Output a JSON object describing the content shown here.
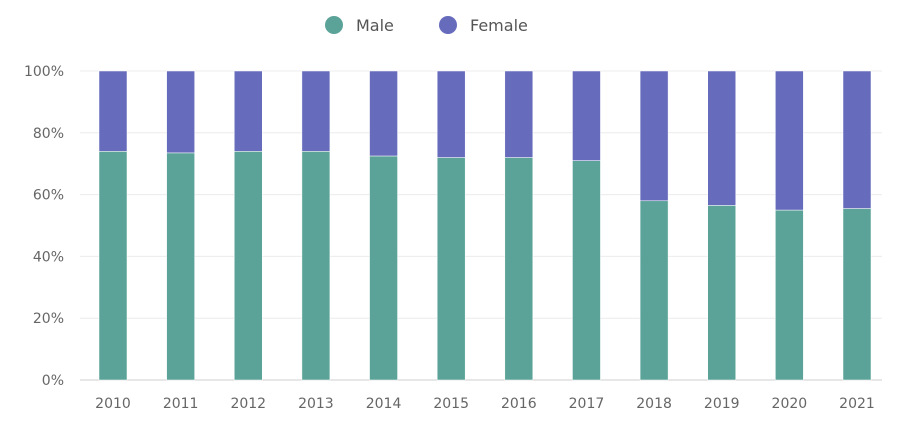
{
  "chart_data": {
    "type": "bar",
    "stacked": true,
    "percent": true,
    "categories": [
      "2010",
      "2011",
      "2012",
      "2013",
      "2014",
      "2015",
      "2016",
      "2017",
      "2018",
      "2019",
      "2020",
      "2021"
    ],
    "series": [
      {
        "name": "Male",
        "color": "#5ba398",
        "values": [
          74,
          73.5,
          74,
          74,
          72.5,
          72,
          72,
          71,
          58,
          56.5,
          55,
          55.5
        ]
      },
      {
        "name": "Female",
        "color": "#666bbc",
        "values": [
          26,
          26.5,
          26,
          26,
          27.5,
          28,
          28,
          29,
          42,
          43.5,
          45,
          44.5
        ]
      }
    ],
    "yticks": [
      "0%",
      "20%",
      "40%",
      "60%",
      "80%",
      "100%"
    ],
    "ylim": [
      0,
      100
    ],
    "grid": true,
    "legend": "top-center"
  }
}
